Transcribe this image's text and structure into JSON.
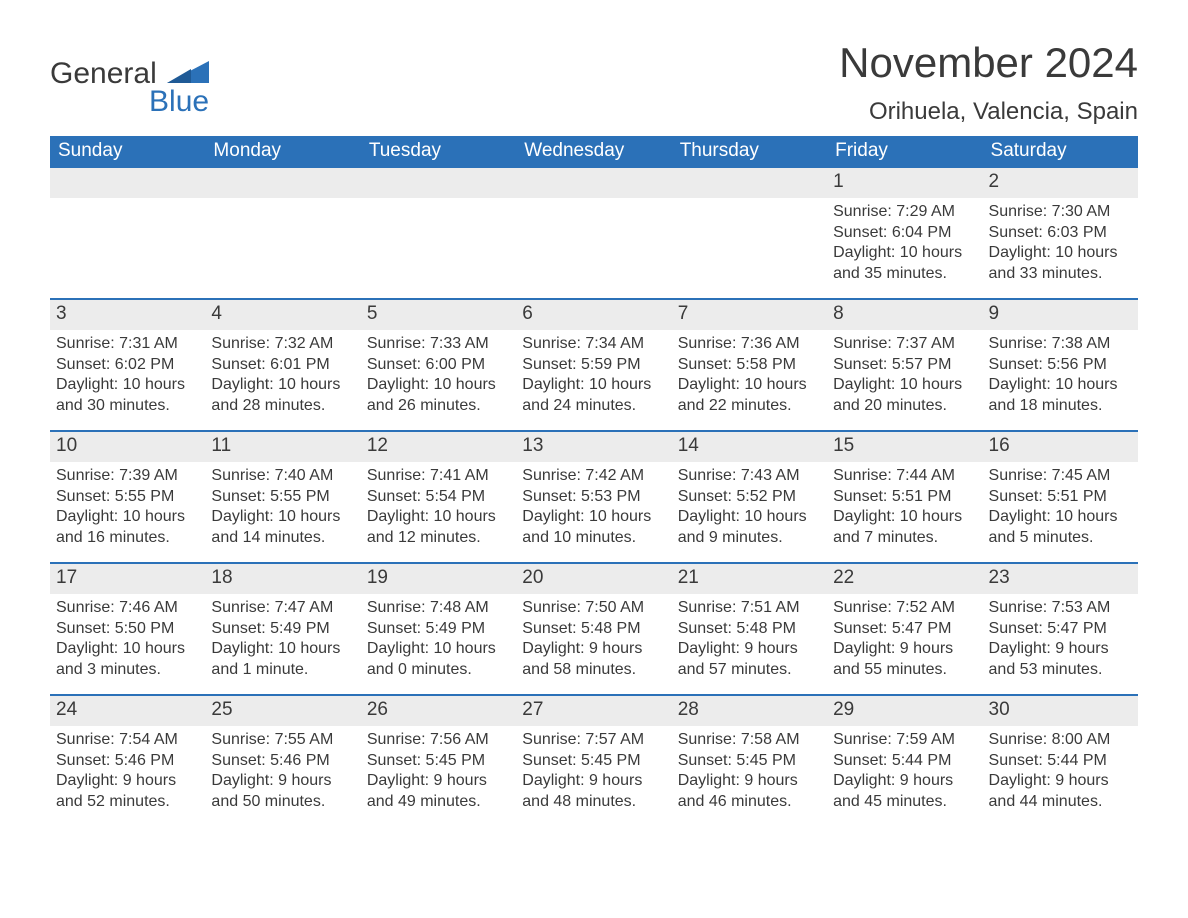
{
  "logo": {
    "general": "General",
    "blue": "Blue"
  },
  "title": "November 2024",
  "location": "Orihuela, Valencia, Spain",
  "colors": {
    "header_bg": "#2b71b8",
    "header_text": "#ffffff",
    "daynum_bg": "#ececec",
    "week_border": "#2b71b8",
    "text": "#3a3a3a",
    "logo_blue": "#2b71b8",
    "background": "#ffffff"
  },
  "typography": {
    "title_fontsize": 42,
    "location_fontsize": 24,
    "header_fontsize": 19,
    "daynum_fontsize": 19,
    "body_fontsize": 16,
    "logo_fontsize": 30
  },
  "columns": [
    "Sunday",
    "Monday",
    "Tuesday",
    "Wednesday",
    "Thursday",
    "Friday",
    "Saturday"
  ],
  "weeks": [
    [
      null,
      null,
      null,
      null,
      null,
      {
        "n": "1",
        "sunrise": "Sunrise: 7:29 AM",
        "sunset": "Sunset: 6:04 PM",
        "daylight": "Daylight: 10 hours and 35 minutes."
      },
      {
        "n": "2",
        "sunrise": "Sunrise: 7:30 AM",
        "sunset": "Sunset: 6:03 PM",
        "daylight": "Daylight: 10 hours and 33 minutes."
      }
    ],
    [
      {
        "n": "3",
        "sunrise": "Sunrise: 7:31 AM",
        "sunset": "Sunset: 6:02 PM",
        "daylight": "Daylight: 10 hours and 30 minutes."
      },
      {
        "n": "4",
        "sunrise": "Sunrise: 7:32 AM",
        "sunset": "Sunset: 6:01 PM",
        "daylight": "Daylight: 10 hours and 28 minutes."
      },
      {
        "n": "5",
        "sunrise": "Sunrise: 7:33 AM",
        "sunset": "Sunset: 6:00 PM",
        "daylight": "Daylight: 10 hours and 26 minutes."
      },
      {
        "n": "6",
        "sunrise": "Sunrise: 7:34 AM",
        "sunset": "Sunset: 5:59 PM",
        "daylight": "Daylight: 10 hours and 24 minutes."
      },
      {
        "n": "7",
        "sunrise": "Sunrise: 7:36 AM",
        "sunset": "Sunset: 5:58 PM",
        "daylight": "Daylight: 10 hours and 22 minutes."
      },
      {
        "n": "8",
        "sunrise": "Sunrise: 7:37 AM",
        "sunset": "Sunset: 5:57 PM",
        "daylight": "Daylight: 10 hours and 20 minutes."
      },
      {
        "n": "9",
        "sunrise": "Sunrise: 7:38 AM",
        "sunset": "Sunset: 5:56 PM",
        "daylight": "Daylight: 10 hours and 18 minutes."
      }
    ],
    [
      {
        "n": "10",
        "sunrise": "Sunrise: 7:39 AM",
        "sunset": "Sunset: 5:55 PM",
        "daylight": "Daylight: 10 hours and 16 minutes."
      },
      {
        "n": "11",
        "sunrise": "Sunrise: 7:40 AM",
        "sunset": "Sunset: 5:55 PM",
        "daylight": "Daylight: 10 hours and 14 minutes."
      },
      {
        "n": "12",
        "sunrise": "Sunrise: 7:41 AM",
        "sunset": "Sunset: 5:54 PM",
        "daylight": "Daylight: 10 hours and 12 minutes."
      },
      {
        "n": "13",
        "sunrise": "Sunrise: 7:42 AM",
        "sunset": "Sunset: 5:53 PM",
        "daylight": "Daylight: 10 hours and 10 minutes."
      },
      {
        "n": "14",
        "sunrise": "Sunrise: 7:43 AM",
        "sunset": "Sunset: 5:52 PM",
        "daylight": "Daylight: 10 hours and 9 minutes."
      },
      {
        "n": "15",
        "sunrise": "Sunrise: 7:44 AM",
        "sunset": "Sunset: 5:51 PM",
        "daylight": "Daylight: 10 hours and 7 minutes."
      },
      {
        "n": "16",
        "sunrise": "Sunrise: 7:45 AM",
        "sunset": "Sunset: 5:51 PM",
        "daylight": "Daylight: 10 hours and 5 minutes."
      }
    ],
    [
      {
        "n": "17",
        "sunrise": "Sunrise: 7:46 AM",
        "sunset": "Sunset: 5:50 PM",
        "daylight": "Daylight: 10 hours and 3 minutes."
      },
      {
        "n": "18",
        "sunrise": "Sunrise: 7:47 AM",
        "sunset": "Sunset: 5:49 PM",
        "daylight": "Daylight: 10 hours and 1 minute."
      },
      {
        "n": "19",
        "sunrise": "Sunrise: 7:48 AM",
        "sunset": "Sunset: 5:49 PM",
        "daylight": "Daylight: 10 hours and 0 minutes."
      },
      {
        "n": "20",
        "sunrise": "Sunrise: 7:50 AM",
        "sunset": "Sunset: 5:48 PM",
        "daylight": "Daylight: 9 hours and 58 minutes."
      },
      {
        "n": "21",
        "sunrise": "Sunrise: 7:51 AM",
        "sunset": "Sunset: 5:48 PM",
        "daylight": "Daylight: 9 hours and 57 minutes."
      },
      {
        "n": "22",
        "sunrise": "Sunrise: 7:52 AM",
        "sunset": "Sunset: 5:47 PM",
        "daylight": "Daylight: 9 hours and 55 minutes."
      },
      {
        "n": "23",
        "sunrise": "Sunrise: 7:53 AM",
        "sunset": "Sunset: 5:47 PM",
        "daylight": "Daylight: 9 hours and 53 minutes."
      }
    ],
    [
      {
        "n": "24",
        "sunrise": "Sunrise: 7:54 AM",
        "sunset": "Sunset: 5:46 PM",
        "daylight": "Daylight: 9 hours and 52 minutes."
      },
      {
        "n": "25",
        "sunrise": "Sunrise: 7:55 AM",
        "sunset": "Sunset: 5:46 PM",
        "daylight": "Daylight: 9 hours and 50 minutes."
      },
      {
        "n": "26",
        "sunrise": "Sunrise: 7:56 AM",
        "sunset": "Sunset: 5:45 PM",
        "daylight": "Daylight: 9 hours and 49 minutes."
      },
      {
        "n": "27",
        "sunrise": "Sunrise: 7:57 AM",
        "sunset": "Sunset: 5:45 PM",
        "daylight": "Daylight: 9 hours and 48 minutes."
      },
      {
        "n": "28",
        "sunrise": "Sunrise: 7:58 AM",
        "sunset": "Sunset: 5:45 PM",
        "daylight": "Daylight: 9 hours and 46 minutes."
      },
      {
        "n": "29",
        "sunrise": "Sunrise: 7:59 AM",
        "sunset": "Sunset: 5:44 PM",
        "daylight": "Daylight: 9 hours and 45 minutes."
      },
      {
        "n": "30",
        "sunrise": "Sunrise: 8:00 AM",
        "sunset": "Sunset: 5:44 PM",
        "daylight": "Daylight: 9 hours and 44 minutes."
      }
    ]
  ]
}
